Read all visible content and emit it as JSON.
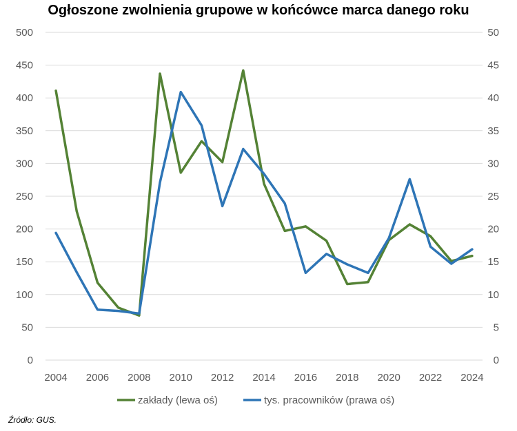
{
  "chart_data": {
    "type": "line",
    "title": "Ogłoszone zwolnienia grupowe w końcówce marca danego roku",
    "x": [
      2004,
      2005,
      2006,
      2007,
      2008,
      2009,
      2010,
      2011,
      2012,
      2013,
      2014,
      2015,
      2016,
      2017,
      2018,
      2019,
      2020,
      2021,
      2022,
      2023,
      2024
    ],
    "x_ticks": [
      "2004",
      "2006",
      "2008",
      "2010",
      "2012",
      "2014",
      "2016",
      "2018",
      "2020",
      "2022",
      "2024"
    ],
    "y_left_range": [
      0,
      500
    ],
    "y_left_ticks": [
      "0",
      "50",
      "100",
      "150",
      "200",
      "250",
      "300",
      "350",
      "400",
      "450",
      "500"
    ],
    "y_right_range": [
      0,
      50
    ],
    "y_right_ticks": [
      "0",
      "5",
      "10",
      "15",
      "20",
      "25",
      "30",
      "35",
      "40",
      "45",
      "50"
    ],
    "grid": true,
    "legend_position": "bottom",
    "series": [
      {
        "name": "zakłady (lewa oś)",
        "axis": "left",
        "color": "#548235",
        "values": [
          411,
          227,
          118,
          80,
          68,
          437,
          286,
          334,
          302,
          442,
          269,
          197,
          204,
          182,
          116,
          119,
          183,
          207,
          189,
          151,
          159
        ]
      },
      {
        "name": "tys. pracowników (prawa oś)",
        "axis": "right",
        "color": "#2E75B6",
        "values": [
          19.4,
          13.4,
          7.7,
          7.5,
          7.1,
          27.1,
          40.9,
          35.8,
          23.5,
          32.2,
          28.4,
          23.9,
          13.3,
          16.2,
          14.6,
          13.3,
          18.6,
          27.6,
          17.3,
          14.7,
          16.9
        ]
      }
    ]
  },
  "source": "Źródło: GUS."
}
